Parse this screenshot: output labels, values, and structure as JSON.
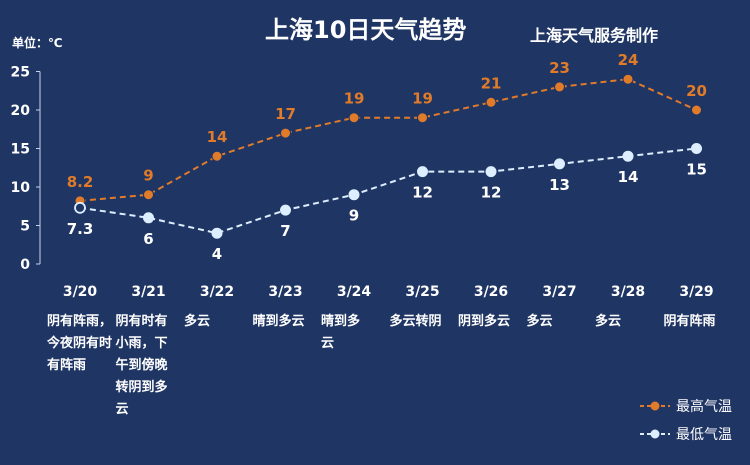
{
  "chart_data": {
    "type": "line",
    "title": "上海10日天气趋势",
    "source_label": "上海天气服务制作",
    "unit_label": "单位：℃",
    "categories": [
      "3/20",
      "3/21",
      "3/22",
      "3/23",
      "3/24",
      "3/25",
      "3/26",
      "3/27",
      "3/28",
      "3/29"
    ],
    "weather_lines": [
      [
        "阴有阵雨，",
        "今夜阴有时",
        "有阵雨"
      ],
      [
        "阴有时有",
        "小雨，下",
        "午到傍晚",
        "转阴到多",
        "云"
      ],
      [
        "多云"
      ],
      [
        "晴到多云"
      ],
      [
        "晴到多",
        "云"
      ],
      [
        "多云转阴"
      ],
      [
        "阴到多云"
      ],
      [
        "多云"
      ],
      [
        "多云"
      ],
      [
        "阴有阵雨"
      ]
    ],
    "series": [
      {
        "name": "最高气温",
        "values": [
          8.2,
          9,
          14,
          17,
          19,
          19,
          21,
          23,
          24,
          20
        ],
        "labels": [
          "8.2",
          "9",
          "14",
          "17",
          "19",
          "19",
          "21",
          "23",
          "24",
          "20"
        ],
        "color": "#e07b2a"
      },
      {
        "name": "最低气温",
        "values": [
          7.3,
          6,
          4,
          7,
          9,
          12,
          12,
          13,
          14,
          15
        ],
        "labels": [
          "7.3",
          "6",
          "4",
          "7",
          "9",
          "12",
          "12",
          "13",
          "14",
          "15"
        ],
        "color": "#ddeeff"
      }
    ],
    "ylim": [
      0,
      25
    ],
    "yticks": [
      "0",
      "5",
      "10",
      "15",
      "20",
      "25"
    ],
    "grid": false,
    "legend": "bottom-right"
  }
}
